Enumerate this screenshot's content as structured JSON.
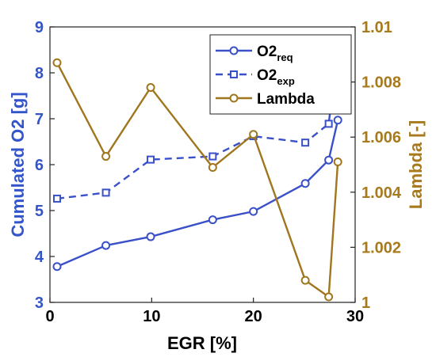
{
  "chart_data": {
    "type": "line",
    "xlabel": "EGR [%]",
    "ylabel_left": "Cumulated O2 [g]",
    "ylabel_right": "Lambda [-]",
    "xlim": [
      0,
      30
    ],
    "ylim_left": [
      3,
      9
    ],
    "ylim_right": [
      1,
      1.01
    ],
    "x_ticks": [
      "0",
      "10",
      "20",
      "30"
    ],
    "y_left_ticks": [
      "3",
      "4",
      "5",
      "6",
      "7",
      "8",
      "9"
    ],
    "y_right_ticks": [
      "1",
      "1.002",
      "1.004",
      "1.006",
      "1.008",
      "1.01"
    ],
    "grid": false,
    "legend_position": "top-right",
    "colors": {
      "left_axis": "#3355cc",
      "right_axis": "#a87a1e",
      "o2req": "#3a50c8",
      "o2exp": "#3a50c8",
      "lambda": "#a0761e"
    },
    "series": [
      {
        "name": "O2req",
        "legend_main": "O2",
        "legend_sub": "req",
        "axis": "left",
        "style": "solid",
        "x": [
          0.7,
          5.5,
          9.9,
          16.0,
          20.0,
          25.1,
          27.4,
          28.3
        ],
        "y": [
          3.78,
          4.24,
          4.43,
          4.8,
          4.98,
          5.59,
          6.1,
          6.97
        ]
      },
      {
        "name": "O2exp",
        "legend_main": "O2",
        "legend_sub": "exp",
        "axis": "left",
        "style": "dashed",
        "x": [
          0.7,
          5.5,
          9.9,
          16.0,
          20.0,
          25.1,
          27.4,
          28.3
        ],
        "y": [
          5.26,
          5.39,
          6.11,
          6.18,
          6.62,
          6.48,
          6.89,
          8.53
        ]
      },
      {
        "name": "Lambda",
        "legend_main": "Lambda",
        "legend_sub": "",
        "axis": "right",
        "style": "solid",
        "x": [
          0.7,
          5.5,
          9.9,
          16.0,
          20.0,
          25.1,
          27.4,
          28.3
        ],
        "y": [
          1.0087,
          1.0053,
          1.0078,
          1.0049,
          1.0061,
          1.0008,
          1.0002,
          1.0051
        ]
      }
    ]
  }
}
